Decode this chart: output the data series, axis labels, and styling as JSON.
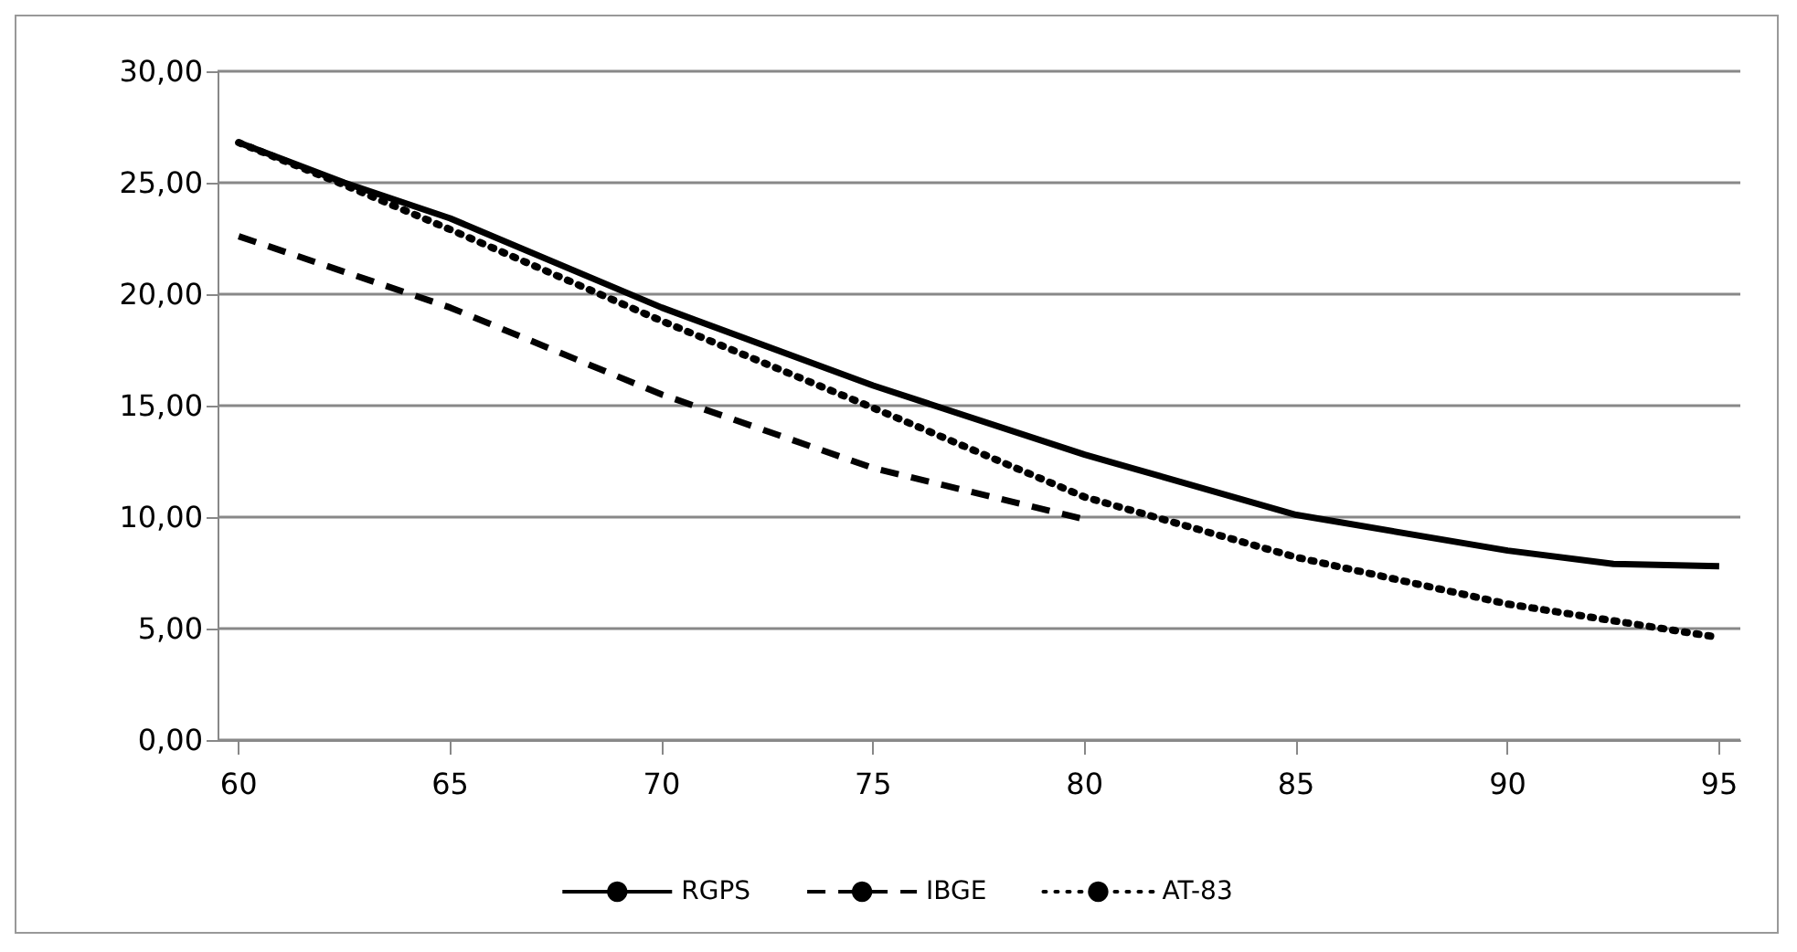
{
  "chart_data": {
    "type": "line",
    "series": [
      {
        "name": "RGPS",
        "color": "#000000",
        "line_style": "solid",
        "x": [
          60,
          62.5,
          65,
          70,
          75,
          80,
          85,
          90,
          92.5,
          95
        ],
        "values": [
          26.8,
          25.0,
          23.4,
          19.4,
          15.9,
          12.8,
          10.1,
          8.5,
          7.9,
          7.8
        ]
      },
      {
        "name": "IBGE",
        "color": "#000000",
        "line_style": "dashed",
        "x": [
          60,
          65,
          70,
          75,
          80
        ],
        "values": [
          22.6,
          19.4,
          15.5,
          12.2,
          9.9
        ]
      },
      {
        "name": "AT-83",
        "color": "#000000",
        "line_style": "dotted",
        "x": [
          60,
          62.5,
          65,
          70,
          75,
          80,
          85,
          90,
          95
        ],
        "values": [
          26.8,
          24.9,
          22.9,
          18.8,
          14.9,
          10.9,
          8.2,
          6.1,
          4.6
        ]
      }
    ],
    "xlim": [
      59.5,
      95.5
    ],
    "xticks": [
      60,
      65,
      70,
      75,
      80,
      85,
      90,
      95
    ],
    "ylim": [
      0,
      30
    ],
    "yticks": [
      {
        "value": 0,
        "label": "0,00"
      },
      {
        "value": 5,
        "label": "5,00"
      },
      {
        "value": 10,
        "label": "10,00"
      },
      {
        "value": 15,
        "label": "15,00"
      },
      {
        "value": 20,
        "label": "20,00"
      },
      {
        "value": 25,
        "label": "25,00"
      },
      {
        "value": 30,
        "label": "30,00"
      }
    ],
    "grid": "y",
    "legend": "bottom",
    "marker": "none"
  }
}
